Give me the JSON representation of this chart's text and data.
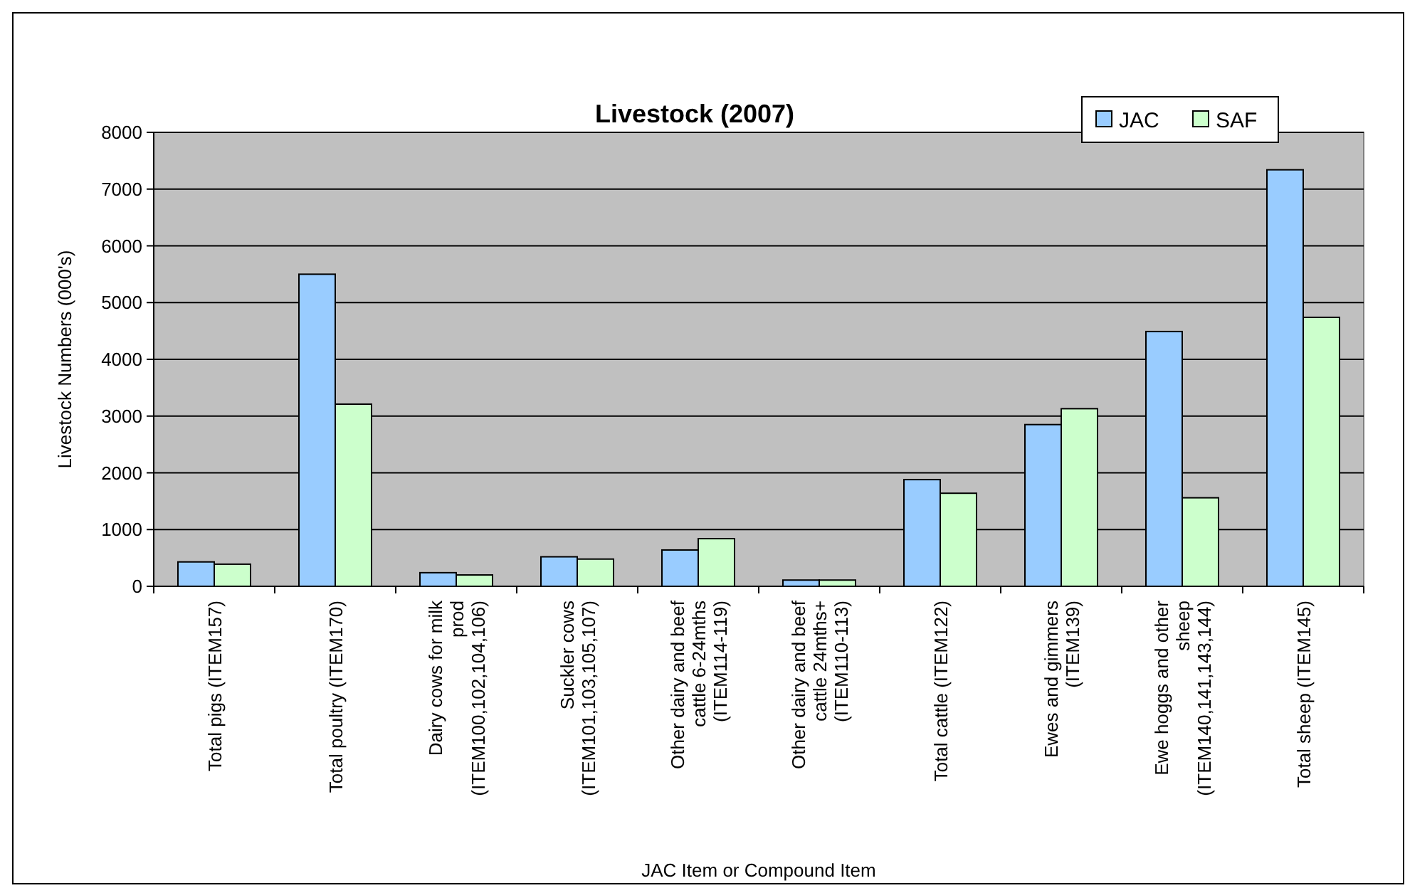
{
  "chart_data": {
    "type": "bar",
    "title": "Livestock (2007)",
    "xlabel": "JAC Item or Compound Item",
    "ylabel": "Livestock Numbers (000's)",
    "categories": [
      "Total pigs (ITEM157)",
      "Total poultry (ITEM170)",
      "Dairy cows for milk prod (ITEM100,102,104,106)",
      "Suckler cows (ITEM101,103,105,107)",
      "Other dairy and beef cattle 6-24mths (ITEM114-119)",
      "Other dairy and beef cattle 24mths+ (ITEM110-113)",
      "Total cattle (ITEM122)",
      "Ewes and gimmers (ITEM139)",
      "Ewe hoggs and other sheep (ITEM140,141,143,144)",
      "Total sheep (ITEM145)"
    ],
    "series": [
      {
        "name": "JAC",
        "color": "#99ccff",
        "values": [
          430,
          5500,
          240,
          520,
          640,
          110,
          1880,
          2850,
          4490,
          7340
        ]
      },
      {
        "name": "SAF",
        "color": "#ccffcc",
        "values": [
          390,
          3210,
          200,
          480,
          840,
          110,
          1640,
          3130,
          1560,
          4740
        ]
      }
    ],
    "ylim": [
      0,
      8000
    ],
    "yticks": [
      0,
      1000,
      2000,
      3000,
      4000,
      5000,
      6000,
      7000,
      8000
    ],
    "grid": "y",
    "legend": "top right"
  }
}
